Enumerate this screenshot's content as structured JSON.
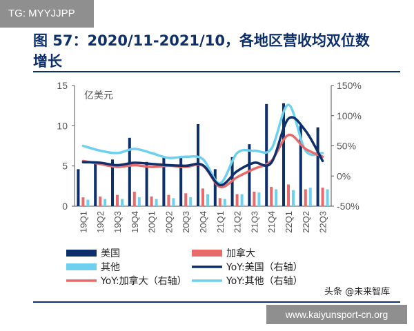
{
  "badge": {
    "text": "TG: MYYJJPP"
  },
  "title": {
    "line1": "图 57：2020/11-2021/10，各地区营收均双位数",
    "line2": "增长"
  },
  "footer": {
    "watermark": "头条 @未来智库",
    "url": "www.kaiyunsport-cn.org"
  },
  "colors": {
    "us": "#0d2f6b",
    "canada": "#e86a6a",
    "other": "#6ed0ef",
    "yoy_canada": "#e86a6a",
    "yoy_us": "#0d2f6b",
    "yoy_other": "#6ed0ef"
  },
  "chart_data": {
    "type": "bar",
    "unit_label": "亿美元",
    "categories": [
      "19Q1",
      "19Q2",
      "19Q3",
      "19Q4",
      "20Q1",
      "20Q2",
      "20Q3",
      "20Q4",
      "21Q1",
      "21Q2",
      "21Q3",
      "21Q4",
      "22Q1",
      "22Q2",
      "22Q3"
    ],
    "left_axis": {
      "ylim": [
        0,
        15
      ],
      "ticks": [
        0,
        5,
        10,
        15
      ]
    },
    "right_axis": {
      "ylim": [
        -50,
        150
      ],
      "ticks": [
        "-50%",
        "0%",
        "50%",
        "100%",
        "150%"
      ],
      "tick_values": [
        -50,
        0,
        50,
        100,
        150
      ]
    },
    "bar_series": [
      {
        "name": "美国",
        "values": [
          4.6,
          5.5,
          5.8,
          8.5,
          5.5,
          6.1,
          6.2,
          10.2,
          4.6,
          6.1,
          7.7,
          12.7,
          12.8,
          10.0,
          9.8
        ]
      },
      {
        "name": "加拿大",
        "values": [
          1.1,
          1.2,
          1.4,
          1.8,
          1.2,
          1.4,
          1.6,
          2.2,
          1.0,
          1.5,
          1.8,
          2.4,
          2.7,
          2.1,
          2.3
        ]
      },
      {
        "name": "其他",
        "values": [
          0.8,
          0.9,
          0.9,
          1.1,
          0.9,
          1.0,
          1.1,
          1.5,
          0.9,
          1.5,
          1.7,
          2.1,
          2.0,
          2.3,
          2.1
        ]
      }
    ],
    "line_series": [
      {
        "name": "YoY:美国（右轴）",
        "values": [
          23,
          22,
          18,
          22,
          20,
          18,
          17,
          18,
          -15,
          8,
          22,
          22,
          95,
          75,
          25
        ]
      },
      {
        "name": "YoY:加拿大（右轴）",
        "values": [
          25,
          20,
          15,
          18,
          15,
          17,
          15,
          17,
          -18,
          -2,
          12,
          25,
          68,
          45,
          32
        ]
      },
      {
        "name": "YoY:其他（右轴）",
        "values": [
          50,
          42,
          38,
          45,
          38,
          30,
          32,
          28,
          -12,
          38,
          42,
          45,
          118,
          42,
          38
        ]
      }
    ],
    "legend": [
      {
        "label": "美国",
        "kind": "bar",
        "series": "us"
      },
      {
        "label": "加拿大",
        "kind": "bar",
        "series": "canada"
      },
      {
        "label": "其他",
        "kind": "bar",
        "series": "other"
      },
      {
        "label": "YoY:美国（右轴）",
        "kind": "line",
        "series": "yoy_us"
      },
      {
        "label": "YoY:加拿大（右轴）",
        "kind": "line",
        "series": "yoy_canada"
      },
      {
        "label": "YoY:其他（右轴）",
        "kind": "line",
        "series": "yoy_other"
      }
    ],
    "legend_position": "bottom",
    "grid": false
  }
}
